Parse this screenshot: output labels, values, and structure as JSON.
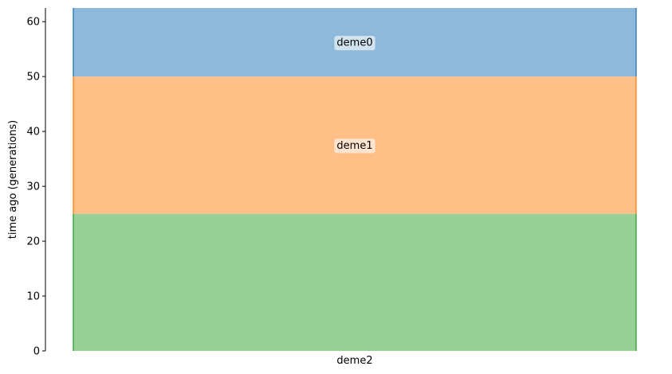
{
  "chart_data": {
    "type": "area",
    "title": "",
    "xlabel": "",
    "ylabel": "time ago (generations)",
    "ylim": [
      0,
      62.5
    ],
    "yticks": [
      0,
      10,
      20,
      30,
      40,
      50,
      60
    ],
    "grid": false,
    "series": [
      {
        "name": "deme2",
        "start": 0,
        "end": 25,
        "color": "#2ca02c",
        "fill": "#98d095",
        "label_position": "x-axis"
      },
      {
        "name": "deme1",
        "start": 25,
        "end": 50,
        "color": "#ff7f0e",
        "fill": "#ffbf87",
        "label_position": "inside"
      },
      {
        "name": "deme0",
        "start": 50,
        "end": 62.5,
        "color": "#1f77b4",
        "fill": "#8fb9da",
        "label_position": "inside"
      }
    ]
  }
}
